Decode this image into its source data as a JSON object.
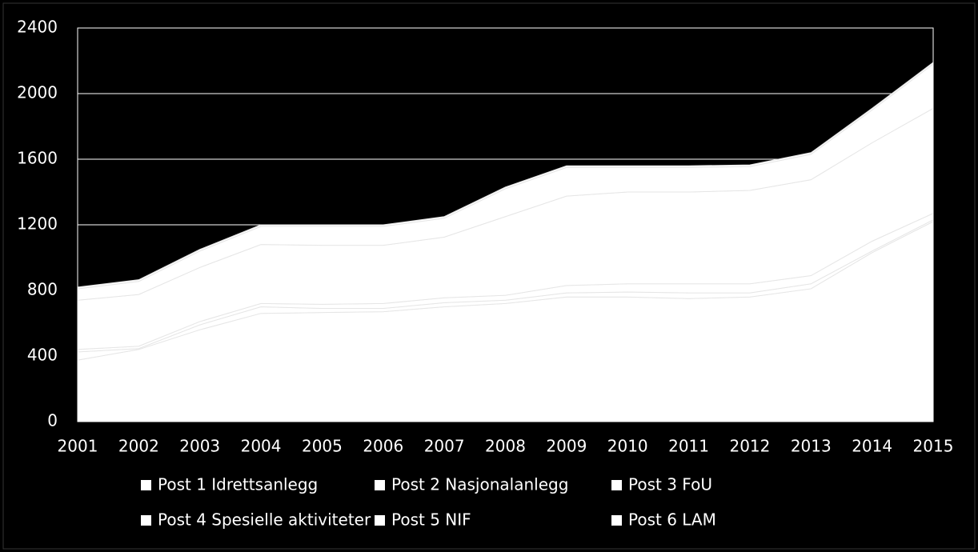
{
  "chart_data": {
    "type": "stacked_area",
    "categories": [
      "2001",
      "2002",
      "2003",
      "2004",
      "2005",
      "2006",
      "2007",
      "2008",
      "2009",
      "2010",
      "2011",
      "2012",
      "2013",
      "2014",
      "2015"
    ],
    "series": [
      {
        "name": "Post 1 Idrettsanlegg",
        "color": "#ffffff",
        "values": [
          375,
          440,
          560,
          660,
          665,
          670,
          700,
          720,
          760,
          760,
          750,
          760,
          810,
          1030,
          1220
        ]
      },
      {
        "name": "Post 2 Nasjonalanlegg",
        "color": "#ffffff",
        "values": [
          50,
          5,
          30,
          40,
          25,
          20,
          25,
          20,
          25,
          30,
          35,
          25,
          30,
          10,
          10
        ]
      },
      {
        "name": "Post 3 FoU",
        "color": "#ffffff",
        "values": [
          15,
          15,
          20,
          20,
          25,
          30,
          30,
          30,
          45,
          50,
          55,
          55,
          50,
          60,
          40
        ]
      },
      {
        "name": "Post 4 Spesielle aktiviteter",
        "color": "#ffffff",
        "values": [
          300,
          315,
          330,
          360,
          360,
          355,
          370,
          480,
          545,
          560,
          560,
          570,
          585,
          600,
          640
        ]
      },
      {
        "name": "Post 5 NIF",
        "color": "#ffffff",
        "values": [
          70,
          80,
          100,
          110,
          115,
          115,
          115,
          170,
          175,
          150,
          150,
          145,
          155,
          200,
          270
        ]
      },
      {
        "name": "Post 6 LAM",
        "color": "#ffffff",
        "values": [
          10,
          10,
          10,
          10,
          10,
          10,
          10,
          10,
          10,
          10,
          10,
          10,
          10,
          10,
          10
        ]
      }
    ],
    "ylim": [
      0,
      2400
    ],
    "yticks": [
      0,
      400,
      800,
      1200,
      1600,
      2000,
      2400
    ],
    "grid": true
  }
}
